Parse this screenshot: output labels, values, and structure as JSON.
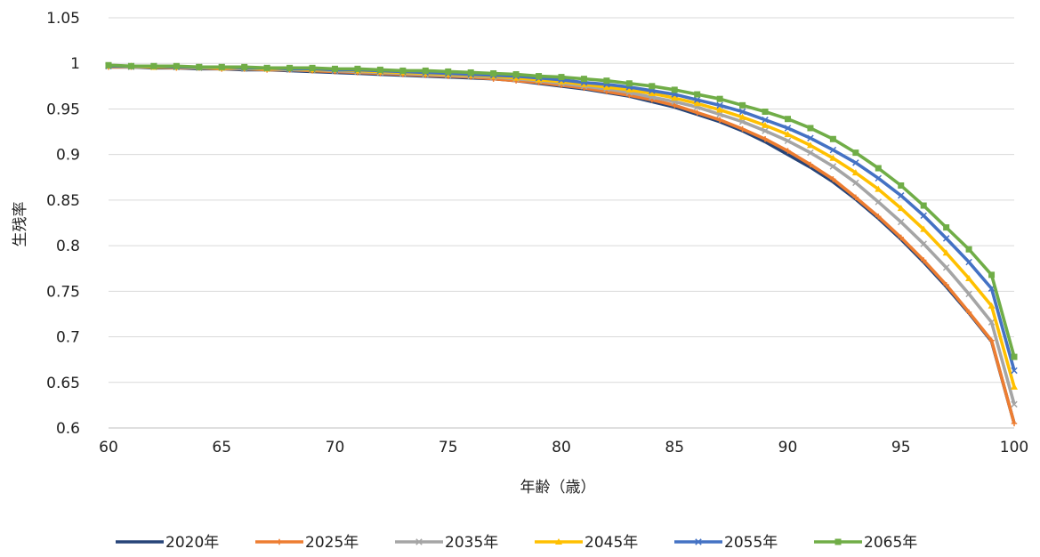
{
  "chart_data": {
    "type": "line",
    "title": "",
    "xlabel": "年齢（歳）",
    "ylabel": "生残率",
    "xlim": [
      60,
      100
    ],
    "ylim": [
      0.6,
      1.05
    ],
    "x_ticks": [
      60,
      65,
      70,
      75,
      80,
      85,
      90,
      95,
      100
    ],
    "y_ticks": [
      0.6,
      0.65,
      0.7,
      0.75,
      0.8,
      0.85,
      0.9,
      0.95,
      1,
      1.05
    ],
    "y_tick_labels": [
      "0.6",
      "0.65",
      "0.7",
      "0.75",
      "0.8",
      "0.85",
      "0.9",
      "0.95",
      "1",
      "1.05"
    ],
    "grid": true,
    "legend_position": "bottom",
    "x": [
      60,
      61,
      62,
      63,
      64,
      65,
      66,
      67,
      68,
      69,
      70,
      71,
      72,
      73,
      74,
      75,
      76,
      77,
      78,
      79,
      80,
      81,
      82,
      83,
      84,
      85,
      86,
      87,
      88,
      89,
      90,
      91,
      92,
      93,
      94,
      95,
      96,
      97,
      98,
      99,
      100
    ],
    "series": [
      {
        "name": "2020年",
        "color": "#264478",
        "marker": "none",
        "values": [
          0.996,
          0.996,
          0.995,
          0.995,
          0.994,
          0.994,
          0.993,
          0.993,
          0.992,
          0.991,
          0.99,
          0.989,
          0.988,
          0.987,
          0.986,
          0.985,
          0.984,
          0.983,
          0.981,
          0.978,
          0.975,
          0.972,
          0.968,
          0.964,
          0.958,
          0.952,
          0.944,
          0.936,
          0.926,
          0.914,
          0.9,
          0.886,
          0.87,
          0.851,
          0.83,
          0.807,
          0.782,
          0.755,
          0.726,
          0.695,
          0.605
        ]
      },
      {
        "name": "2025年",
        "color": "#ed7d31",
        "marker": "plus",
        "values": [
          0.996,
          0.996,
          0.996,
          0.995,
          0.995,
          0.994,
          0.994,
          0.993,
          0.993,
          0.992,
          0.991,
          0.99,
          0.989,
          0.988,
          0.987,
          0.986,
          0.985,
          0.983,
          0.981,
          0.979,
          0.976,
          0.973,
          0.969,
          0.965,
          0.96,
          0.954,
          0.946,
          0.938,
          0.928,
          0.917,
          0.904,
          0.889,
          0.873,
          0.853,
          0.832,
          0.809,
          0.784,
          0.757,
          0.727,
          0.696,
          0.605
        ]
      },
      {
        "name": "2035年",
        "color": "#a5a5a5",
        "marker": "x",
        "values": [
          0.997,
          0.996,
          0.996,
          0.996,
          0.995,
          0.995,
          0.994,
          0.994,
          0.993,
          0.993,
          0.992,
          0.991,
          0.99,
          0.989,
          0.988,
          0.987,
          0.986,
          0.985,
          0.983,
          0.981,
          0.978,
          0.975,
          0.972,
          0.968,
          0.963,
          0.958,
          0.952,
          0.944,
          0.936,
          0.926,
          0.915,
          0.902,
          0.887,
          0.869,
          0.848,
          0.826,
          0.802,
          0.776,
          0.747,
          0.716,
          0.626
        ]
      },
      {
        "name": "2045年",
        "color": "#ffc000",
        "marker": "triangle",
        "values": [
          0.997,
          0.997,
          0.996,
          0.996,
          0.996,
          0.995,
          0.995,
          0.994,
          0.994,
          0.993,
          0.993,
          0.992,
          0.991,
          0.99,
          0.989,
          0.988,
          0.987,
          0.986,
          0.984,
          0.982,
          0.98,
          0.977,
          0.974,
          0.971,
          0.967,
          0.962,
          0.956,
          0.949,
          0.941,
          0.932,
          0.922,
          0.91,
          0.896,
          0.88,
          0.862,
          0.841,
          0.818,
          0.792,
          0.764,
          0.734,
          0.645
        ]
      },
      {
        "name": "2055年",
        "color": "#4472c4",
        "marker": "x",
        "values": [
          0.997,
          0.997,
          0.997,
          0.996,
          0.996,
          0.996,
          0.995,
          0.995,
          0.994,
          0.994,
          0.993,
          0.993,
          0.992,
          0.991,
          0.99,
          0.989,
          0.988,
          0.987,
          0.986,
          0.984,
          0.982,
          0.979,
          0.977,
          0.974,
          0.97,
          0.966,
          0.96,
          0.954,
          0.947,
          0.938,
          0.929,
          0.918,
          0.905,
          0.891,
          0.874,
          0.855,
          0.833,
          0.808,
          0.782,
          0.753,
          0.663
        ]
      },
      {
        "name": "2065年",
        "color": "#70ad47",
        "marker": "square",
        "values": [
          0.998,
          0.997,
          0.997,
          0.997,
          0.996,
          0.996,
          0.996,
          0.995,
          0.995,
          0.995,
          0.994,
          0.994,
          0.993,
          0.992,
          0.992,
          0.991,
          0.99,
          0.989,
          0.988,
          0.986,
          0.985,
          0.983,
          0.981,
          0.978,
          0.975,
          0.971,
          0.966,
          0.961,
          0.954,
          0.947,
          0.939,
          0.929,
          0.917,
          0.902,
          0.885,
          0.866,
          0.844,
          0.82,
          0.796,
          0.768,
          0.678
        ]
      }
    ]
  }
}
